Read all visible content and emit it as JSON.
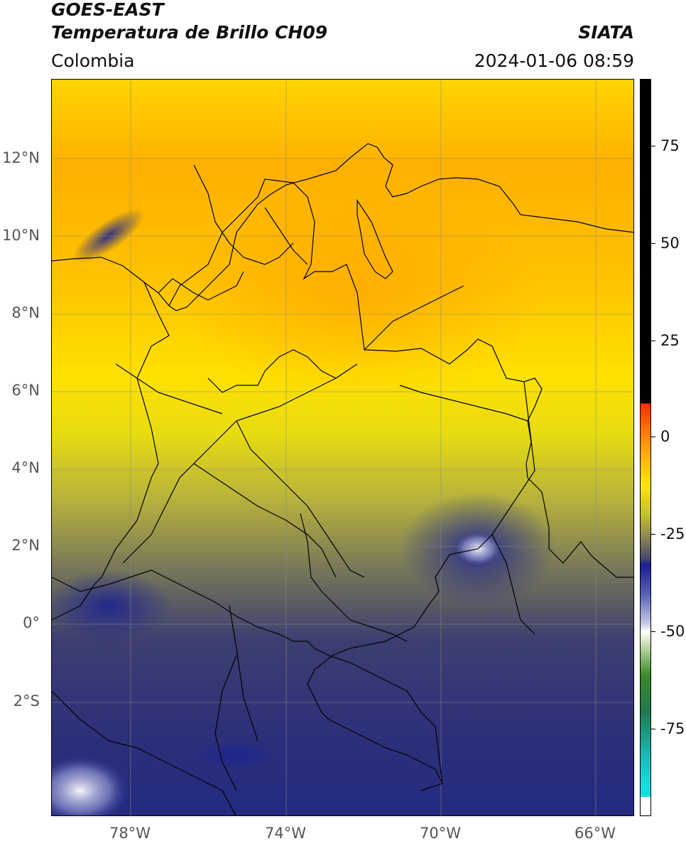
{
  "header": {
    "title_line1": "GOES-EAST",
    "title_line2": "Temperatura de Brillo CH09",
    "brand": "SIATA",
    "region": "Colombia",
    "timestamp": "2024-01-06 08:59"
  },
  "axes": {
    "lat_labels": [
      "12°N",
      "10°N",
      "8°N",
      "6°N",
      "4°N",
      "2°N",
      "0°",
      "2°S"
    ],
    "lon_labels": [
      "78°W",
      "74°W",
      "70°W",
      "66°W"
    ]
  },
  "colorbar": {
    "tick_labels": [
      "75",
      "50",
      "25",
      "0",
      "-25",
      "-50",
      "-75"
    ]
  },
  "colors": {
    "warm": "#ffb000",
    "mid": "#e8dc10",
    "cold": "#2b2f7a",
    "very_cold": "#ffffff"
  }
}
